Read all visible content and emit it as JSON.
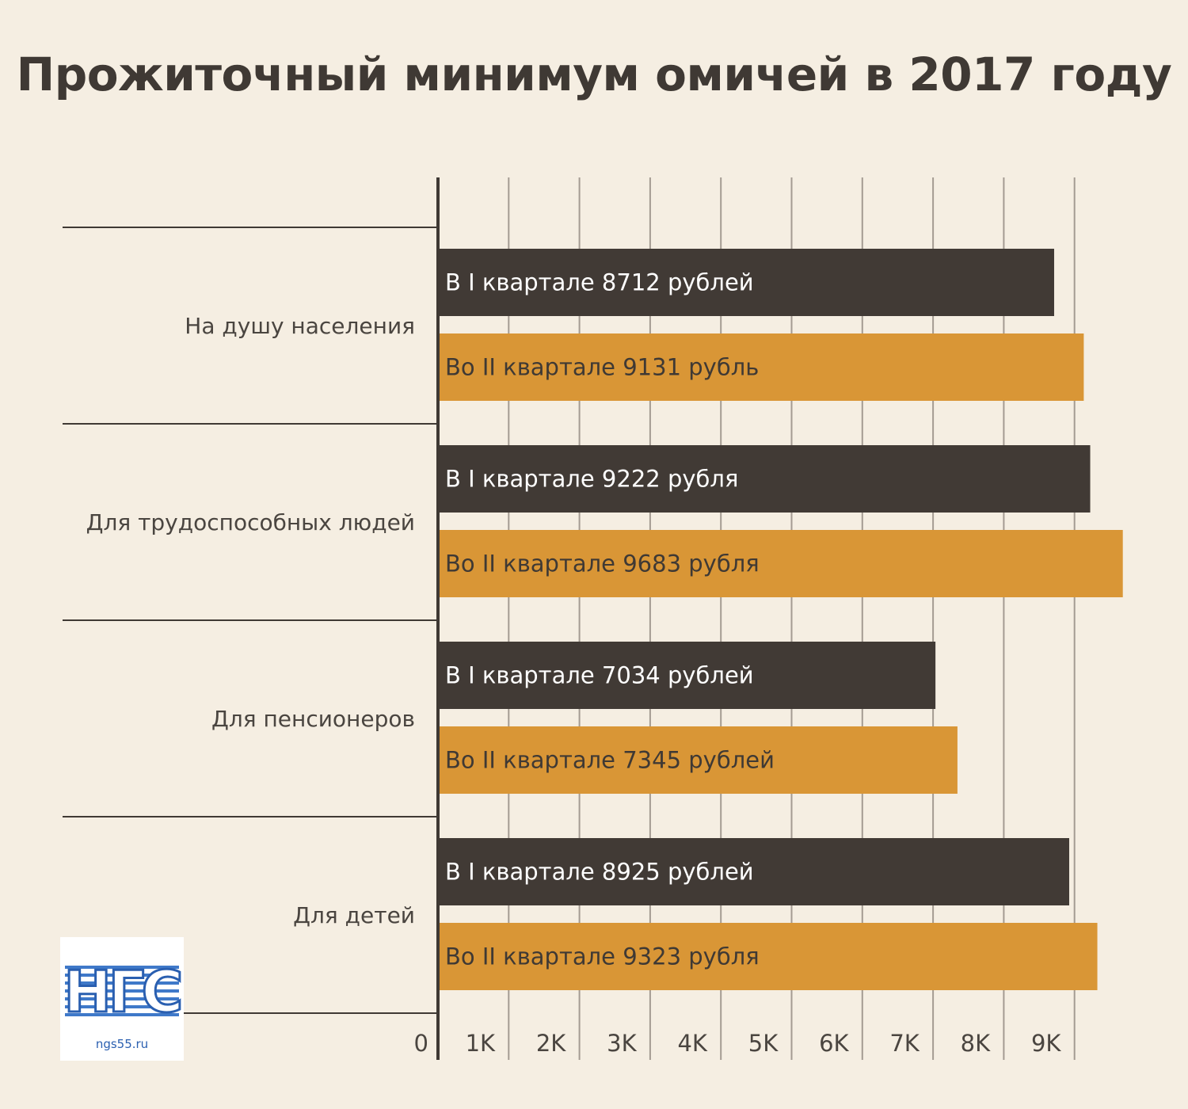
{
  "chart_data": {
    "type": "bar",
    "orientation": "horizontal",
    "title": "Прожиточный минимум омичей в 2017 году",
    "xlim": [
      0,
      10000
    ],
    "ticks": [
      {
        "value": 0,
        "label": "0"
      },
      {
        "value": 1000,
        "label": "1K"
      },
      {
        "value": 2000,
        "label": "2K"
      },
      {
        "value": 3000,
        "label": "3K"
      },
      {
        "value": 4000,
        "label": "4K"
      },
      {
        "value": 5000,
        "label": "5K"
      },
      {
        "value": 6000,
        "label": "6K"
      },
      {
        "value": 7000,
        "label": "7K"
      },
      {
        "value": 8000,
        "label": "8K"
      },
      {
        "value": 9000,
        "label": "9K"
      }
    ],
    "grid": true,
    "categories": [
      "На душу населения",
      "Для трудоспособных людей",
      "Для пенсионеров",
      "Для детей"
    ],
    "series": [
      {
        "color": "#413a35",
        "label_color": "#ffffff",
        "values": [
          8712,
          9222,
          7034,
          8925
        ],
        "bar_labels": [
          "В I квартале 8712 рублей",
          "В I квартале 9222 рубля",
          "В I квартале 7034 рублей",
          "В I квартале 8925 рублей"
        ]
      },
      {
        "color": "#d99636",
        "label_color": "#3f3934",
        "values": [
          9131,
          9683,
          7345,
          9323
        ],
        "bar_labels": [
          "Во II квартале 9131 рубль",
          "Во II квартале 9683 рубля",
          "Во II квартале 7345 рублей",
          "Во II квартале 9323 рубля"
        ]
      }
    ]
  },
  "colors": {
    "background": "#f5eee2",
    "text": "#3f3934",
    "grid": "#a49b92",
    "axis": "#3f3934"
  },
  "logo": {
    "text": "НГС",
    "domain": "ngs55.ru"
  }
}
